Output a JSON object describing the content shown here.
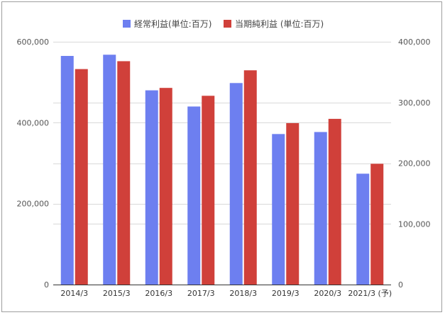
{
  "chart_data": {
    "type": "bar",
    "categories": [
      "2014/3",
      "2015/3",
      "2016/3",
      "2017/3",
      "2018/3",
      "2019/3",
      "2020/3",
      "2021/3 (予)"
    ],
    "series": [
      {
        "name": "経常利益(単位:百万)",
        "axis": "left",
        "color": "#6d7ff0",
        "values": [
          565000,
          568000,
          480000,
          440000,
          498000,
          372000,
          377000,
          274000
        ]
      },
      {
        "name": "当期純利益 (単位:百万)",
        "axis": "right",
        "color": "#d0403a",
        "values": [
          355000,
          368000,
          324000,
          311000,
          353000,
          266000,
          273000,
          199000
        ]
      }
    ],
    "y_left": {
      "ylim": [
        0,
        600000
      ],
      "ticks": [
        "0",
        "200,000",
        "400,000",
        "600,000"
      ]
    },
    "y_right": {
      "ylim": [
        0,
        400000
      ],
      "ticks": [
        "0",
        "100,000",
        "200,000",
        "300,000",
        "400,000"
      ]
    },
    "grid": true,
    "legend_position": "top"
  }
}
